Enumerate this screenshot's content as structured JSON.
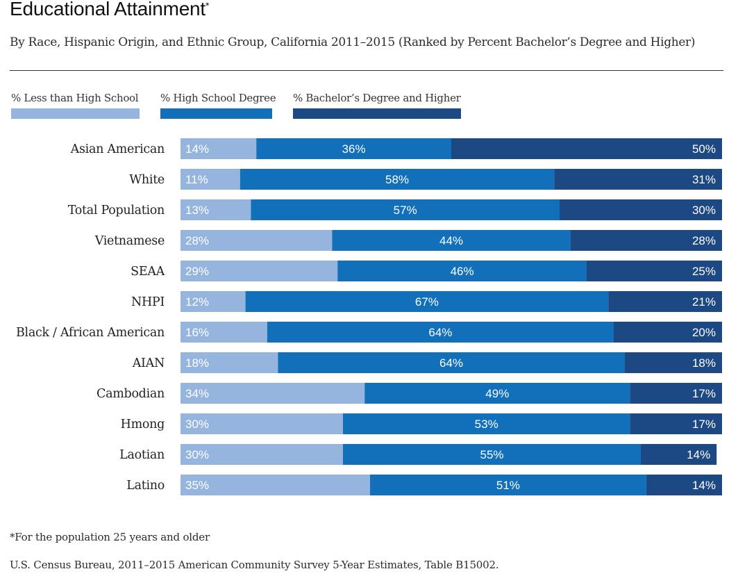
{
  "header": {
    "title": "Educational Attainment",
    "title_mark": "*",
    "subtitle": "By Race, Hispanic Origin, and Ethnic Group, California 2011–2015 (Ranked by Percent Bachelor’s Degree and Higher)"
  },
  "legend": [
    {
      "label": "% Less than High School",
      "color": "#95b5de"
    },
    {
      "label": "% High School Degree",
      "color": "#1270ba"
    },
    {
      "label": "% Bachelor’s Degree and Higher",
      "color": "#1c4884"
    }
  ],
  "chart_data": {
    "type": "bar",
    "orientation": "horizontal",
    "stacked": true,
    "xlim": [
      0,
      100
    ],
    "categories": [
      "Asian American",
      "White",
      "Total Population",
      "Vietnamese",
      "SEAA",
      "NHPI",
      "Black / African American",
      "AIAN",
      "Cambodian",
      "Hmong",
      "Laotian",
      "Latino"
    ],
    "series": [
      {
        "name": "% Less than High School",
        "color": "#95b5de",
        "values": [
          14,
          11,
          13,
          28,
          29,
          12,
          16,
          18,
          34,
          30,
          30,
          35
        ],
        "labels": [
          "14%",
          "11%",
          "13%",
          "28%",
          "29%",
          "12%",
          "16%",
          "18%",
          "34%",
          "30%",
          "30%",
          "35%"
        ]
      },
      {
        "name": "% High School Degree",
        "color": "#1270ba",
        "values": [
          36,
          58,
          57,
          44,
          46,
          67,
          64,
          64,
          49,
          53,
          55,
          51
        ],
        "labels": [
          "36%",
          "58%",
          "57%",
          "44%",
          "46%",
          "67%",
          "64%",
          "64%",
          "49%",
          "53%",
          "55%",
          "51%"
        ]
      },
      {
        "name": "% Bachelor’s Degree and Higher",
        "color": "#1c4884",
        "values": [
          50,
          31,
          30,
          28,
          25,
          21,
          20,
          18,
          17,
          17,
          14,
          14
        ],
        "labels": [
          "50%",
          "31%",
          "30%",
          "28%",
          "25%",
          "21%",
          "20%",
          "18%",
          "17%",
          "17%",
          "14%",
          "14%"
        ]
      }
    ]
  },
  "footer": {
    "note": "*For the population 25 years and older",
    "source": "U.S. Census Bureau, 2011–2015 American Community Survey 5-Year Estimates, Table B15002."
  }
}
